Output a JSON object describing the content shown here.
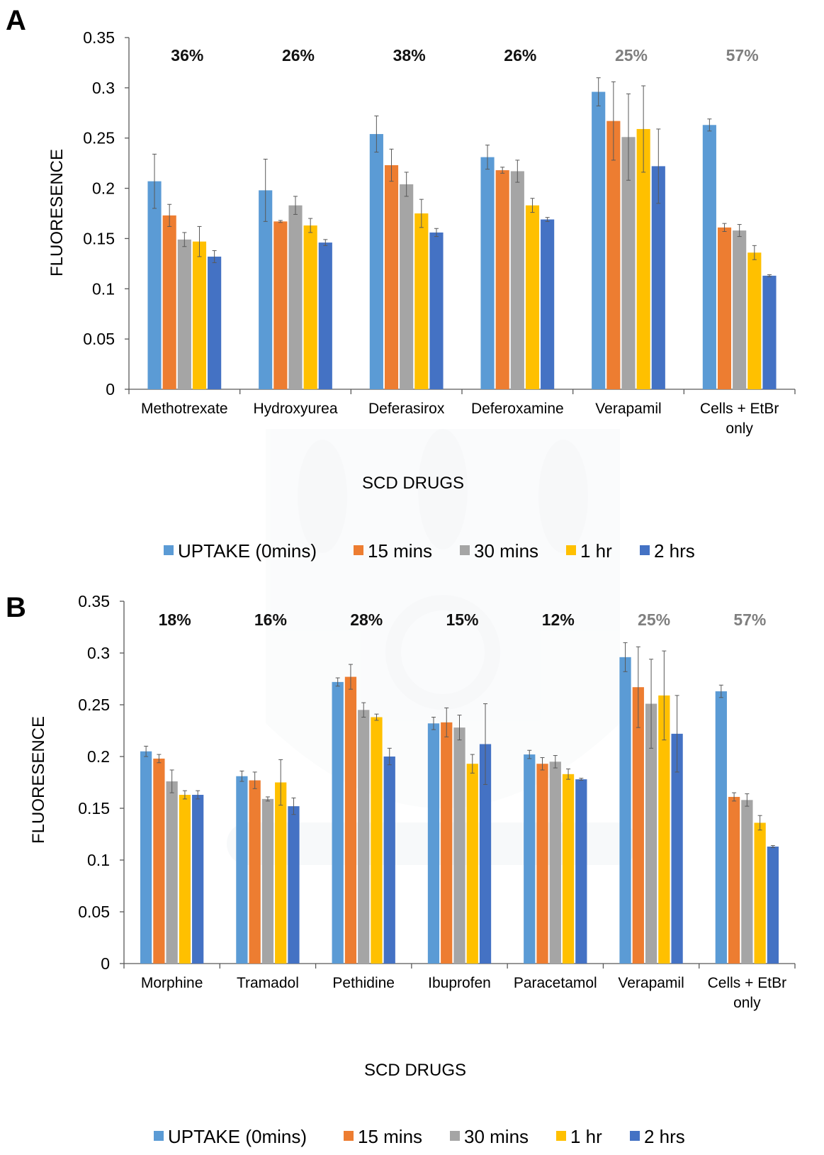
{
  "colors": {
    "uptake": "#5B9BD5",
    "m15": "#ED7D31",
    "m30": "#A5A5A5",
    "h1": "#FFC000",
    "h2": "#4472C4",
    "pct_dark": "#111111",
    "pct_gray": "#7F7F7F"
  },
  "chart_data": [
    {
      "panel": "A",
      "type": "bar",
      "xlabel": "SCD DRUGS",
      "ylabel": "FLUORESENCE",
      "ylim": [
        0,
        0.35
      ],
      "yticks": [
        "0",
        "0.05",
        "0.1",
        "0.15",
        "0.2",
        "0.25",
        "0.3",
        "0.35"
      ],
      "legend_position": "bottom",
      "categories": [
        "Methotrexate",
        "Hydroxyurea",
        "Deferasirox",
        "Deferoxamine",
        "Verapamil",
        "Cells + EtBr only"
      ],
      "percent_labels": [
        {
          "text": "36%",
          "style": "dark"
        },
        {
          "text": "26%",
          "style": "dark"
        },
        {
          "text": "38%",
          "style": "dark"
        },
        {
          "text": "26%",
          "style": "dark"
        },
        {
          "text": "25%",
          "style": "gray"
        },
        {
          "text": "57%",
          "style": "gray"
        }
      ],
      "series": [
        {
          "name": "UPTAKE (0mins)",
          "color_key": "uptake",
          "values": [
            0.207,
            0.198,
            0.254,
            0.231,
            0.296,
            0.263
          ],
          "errors": [
            0.027,
            0.031,
            0.018,
            0.012,
            0.014,
            0.006
          ]
        },
        {
          "name": "15 mins",
          "color_key": "m15",
          "values": [
            0.173,
            0.167,
            0.223,
            0.218,
            0.267,
            0.161
          ],
          "errors": [
            0.011,
            0.001,
            0.016,
            0.003,
            0.039,
            0.004
          ]
        },
        {
          "name": "30 mins",
          "color_key": "m30",
          "values": [
            0.149,
            0.183,
            0.204,
            0.217,
            0.251,
            0.158
          ],
          "errors": [
            0.007,
            0.009,
            0.012,
            0.011,
            0.043,
            0.006
          ]
        },
        {
          "name": "1 hr",
          "color_key": "h1",
          "values": [
            0.147,
            0.163,
            0.175,
            0.183,
            0.259,
            0.136
          ],
          "errors": [
            0.015,
            0.007,
            0.014,
            0.007,
            0.043,
            0.007
          ]
        },
        {
          "name": "2 hrs",
          "color_key": "h2",
          "values": [
            0.132,
            0.146,
            0.156,
            0.169,
            0.222,
            0.113
          ],
          "errors": [
            0.006,
            0.003,
            0.004,
            0.002,
            0.037,
            0.001
          ]
        }
      ]
    },
    {
      "panel": "B",
      "type": "bar",
      "xlabel": "SCD DRUGS",
      "ylabel": "FLUORESENCE",
      "ylim": [
        0,
        0.35
      ],
      "yticks": [
        "0",
        "0.05",
        "0.1",
        "0.15",
        "0.2",
        "0.25",
        "0.3",
        "0.35"
      ],
      "legend_position": "bottom",
      "categories": [
        "Morphine",
        "Tramadol",
        "Pethidine",
        "Ibuprofen",
        "Paracetamol",
        "Verapamil",
        "Cells + EtBr only"
      ],
      "percent_labels": [
        {
          "text": "18%",
          "style": "dark"
        },
        {
          "text": "16%",
          "style": "dark"
        },
        {
          "text": "28%",
          "style": "dark"
        },
        {
          "text": "15%",
          "style": "dark"
        },
        {
          "text": "12%",
          "style": "dark"
        },
        {
          "text": "25%",
          "style": "gray"
        },
        {
          "text": "57%",
          "style": "gray"
        }
      ],
      "series": [
        {
          "name": "UPTAKE (0mins)",
          "color_key": "uptake",
          "values": [
            0.205,
            0.181,
            0.272,
            0.232,
            0.202,
            0.296,
            0.263
          ],
          "errors": [
            0.005,
            0.005,
            0.004,
            0.006,
            0.004,
            0.014,
            0.006
          ]
        },
        {
          "name": "15 mins",
          "color_key": "m15",
          "values": [
            0.198,
            0.177,
            0.277,
            0.233,
            0.193,
            0.267,
            0.161
          ],
          "errors": [
            0.004,
            0.008,
            0.012,
            0.014,
            0.006,
            0.039,
            0.004
          ]
        },
        {
          "name": "30 mins",
          "color_key": "m30",
          "values": [
            0.176,
            0.159,
            0.245,
            0.228,
            0.195,
            0.251,
            0.158
          ],
          "errors": [
            0.011,
            0.002,
            0.007,
            0.012,
            0.006,
            0.043,
            0.006
          ]
        },
        {
          "name": "1 hr",
          "color_key": "h1",
          "values": [
            0.163,
            0.175,
            0.238,
            0.193,
            0.183,
            0.259,
            0.136
          ],
          "errors": [
            0.004,
            0.022,
            0.003,
            0.009,
            0.005,
            0.043,
            0.007
          ]
        },
        {
          "name": "2 hrs",
          "color_key": "h2",
          "values": [
            0.163,
            0.152,
            0.2,
            0.212,
            0.178,
            0.222,
            0.113
          ],
          "errors": [
            0.004,
            0.008,
            0.008,
            0.039,
            0.001,
            0.037,
            0.001
          ]
        }
      ]
    }
  ]
}
